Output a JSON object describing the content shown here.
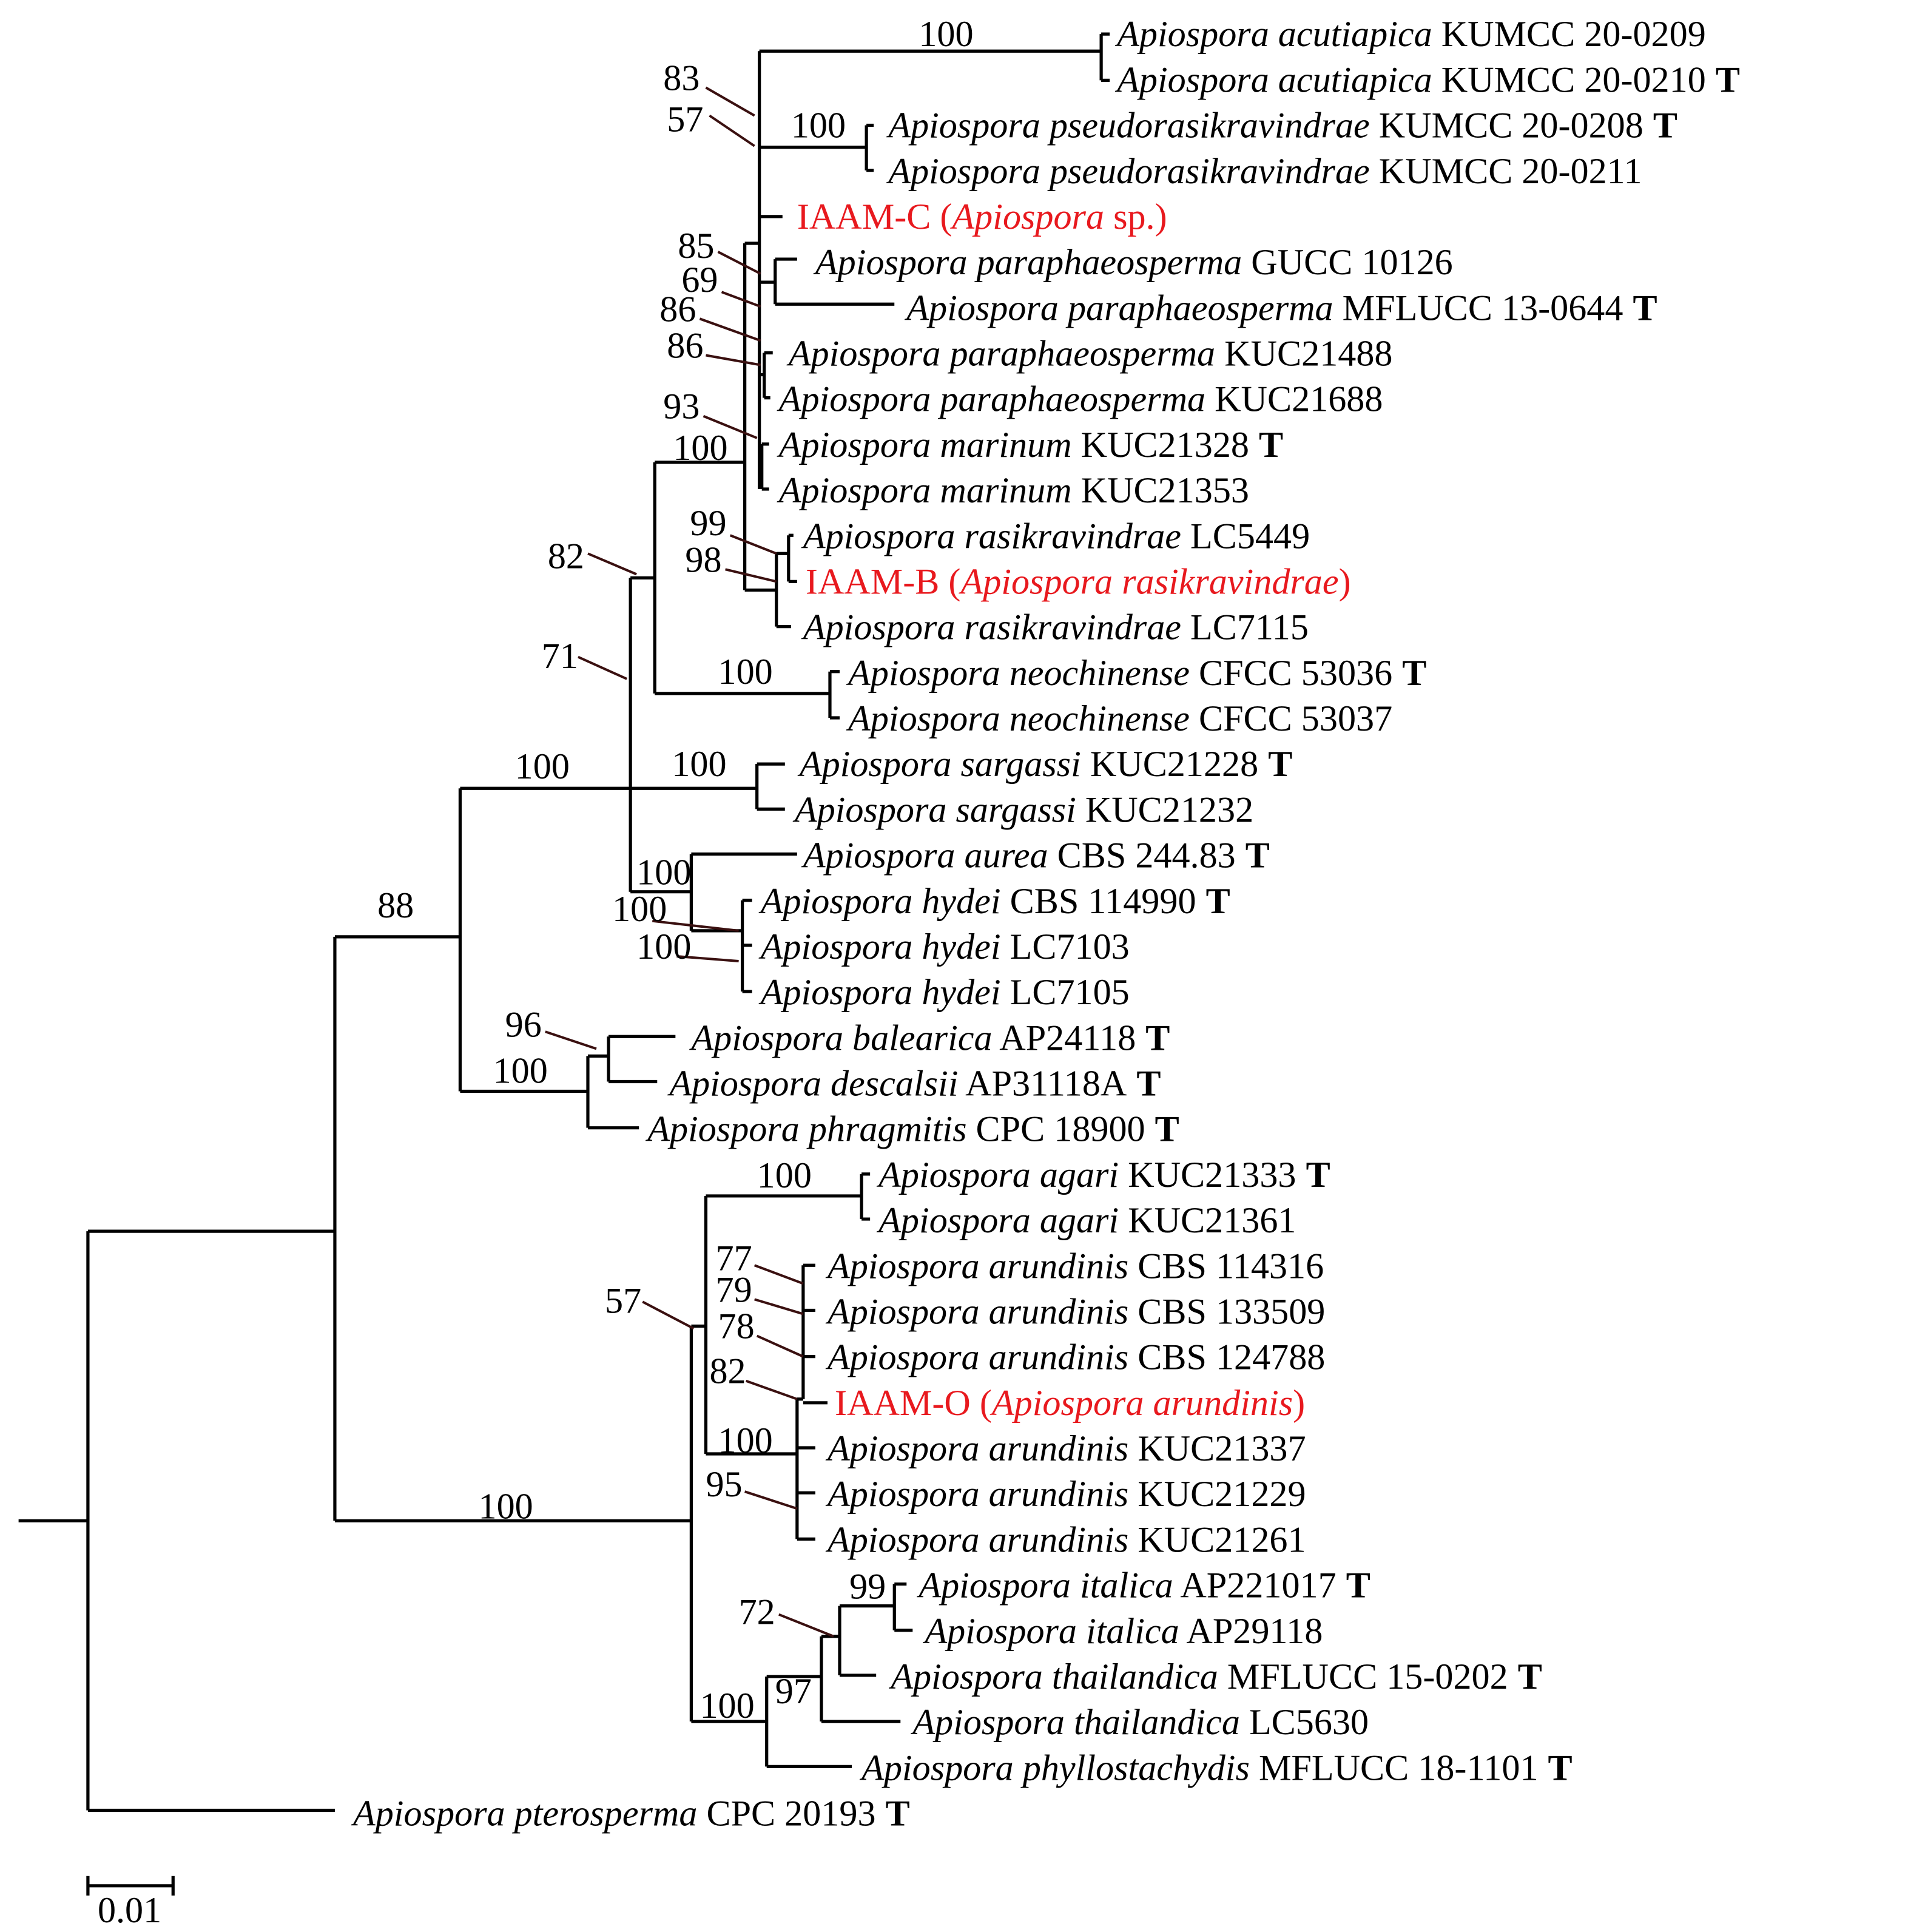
{
  "taxa": [
    {
      "parts": [
        {
          "text": "Apiospora acutiapica",
          "italic": true
        },
        {
          "text": " KUMCC 20-0209"
        }
      ]
    },
    {
      "parts": [
        {
          "text": "Apiospora acutiapica",
          "italic": true
        },
        {
          "text": " KUMCC 20-0210"
        }
      ],
      "type": "T"
    },
    {
      "parts": [
        {
          "text": "Apiospora pseudorasikravindrae",
          "italic": true
        },
        {
          "text": " KUMCC 20-0208"
        }
      ],
      "type": "T"
    },
    {
      "parts": [
        {
          "text": "Apiospora pseudorasikravindrae",
          "italic": true
        },
        {
          "text": " KUMCC 20-0211"
        }
      ]
    },
    {
      "parts": [
        {
          "text": "IAAM-C ("
        },
        {
          "text": "Apiospora",
          "italic": true
        },
        {
          "text": " sp.)"
        }
      ],
      "color": "#e8191e"
    },
    {
      "parts": [
        {
          "text": "Apiospora paraphaeosperma",
          "italic": true
        },
        {
          "text": " GUCC 10126"
        }
      ]
    },
    {
      "parts": [
        {
          "text": "Apiospora paraphaeosperma",
          "italic": true
        },
        {
          "text": " MFLUCC 13-0644"
        }
      ],
      "type": "T"
    },
    {
      "parts": [
        {
          "text": "Apiospora paraphaeosperma",
          "italic": true
        },
        {
          "text": " KUC21488"
        }
      ]
    },
    {
      "parts": [
        {
          "text": "Apiospora paraphaeosperma",
          "italic": true
        },
        {
          "text": " KUC21688"
        }
      ]
    },
    {
      "parts": [
        {
          "text": "Apiospora marinum",
          "italic": true
        },
        {
          "text": " KUC21328"
        }
      ],
      "type": "T"
    },
    {
      "parts": [
        {
          "text": "Apiospora marinum",
          "italic": true
        },
        {
          "text": " KUC21353"
        }
      ]
    },
    {
      "parts": [
        {
          "text": "Apiospora rasikravindrae",
          "italic": true
        },
        {
          "text": " LC5449"
        }
      ]
    },
    {
      "parts": [
        {
          "text": "IAAM-B ("
        },
        {
          "text": "Apiospora rasikravindrae",
          "italic": true
        },
        {
          "text": ")"
        }
      ],
      "color": "#e8191e"
    },
    {
      "parts": [
        {
          "text": "Apiospora rasikravindrae",
          "italic": true
        },
        {
          "text": " LC7115"
        }
      ]
    },
    {
      "parts": [
        {
          "text": "Apiospora neochinense",
          "italic": true
        },
        {
          "text": " CFCC 53036"
        }
      ],
      "type": "T"
    },
    {
      "parts": [
        {
          "text": "Apiospora neochinense",
          "italic": true
        },
        {
          "text": " CFCC 53037"
        }
      ]
    },
    {
      "parts": [
        {
          "text": "Apiospora sargassi",
          "italic": true
        },
        {
          "text": " KUC21228"
        }
      ],
      "type": "T"
    },
    {
      "parts": [
        {
          "text": "Apiospora sargassi",
          "italic": true
        },
        {
          "text": " KUC21232"
        }
      ]
    },
    {
      "parts": [
        {
          "text": "Apiospora aurea",
          "italic": true
        },
        {
          "text": " CBS 244.83"
        }
      ],
      "type": "T"
    },
    {
      "parts": [
        {
          "text": "Apiospora hydei",
          "italic": true
        },
        {
          "text": " CBS 114990"
        }
      ],
      "type": "T"
    },
    {
      "parts": [
        {
          "text": "Apiospora hydei",
          "italic": true
        },
        {
          "text": " LC7103"
        }
      ]
    },
    {
      "parts": [
        {
          "text": "Apiospora hydei",
          "italic": true
        },
        {
          "text": " LC7105"
        }
      ]
    },
    {
      "parts": [
        {
          "text": "Apiospora balearica",
          "italic": true
        },
        {
          "text": " AP24118"
        }
      ],
      "type": "T"
    },
    {
      "parts": [
        {
          "text": "Apiospora descalsii",
          "italic": true
        },
        {
          "text": " AP31118A"
        }
      ],
      "type": "T"
    },
    {
      "parts": [
        {
          "text": "Apiospora phragmitis",
          "italic": true
        },
        {
          "text": " CPC 18900"
        }
      ],
      "type": "T"
    },
    {
      "parts": [
        {
          "text": "Apiospora agari",
          "italic": true
        },
        {
          "text": " KUC21333"
        }
      ],
      "type": "T"
    },
    {
      "parts": [
        {
          "text": "Apiospora agari",
          "italic": true
        },
        {
          "text": " KUC21361"
        }
      ]
    },
    {
      "parts": [
        {
          "text": "Apiospora arundinis",
          "italic": true
        },
        {
          "text": " CBS 114316"
        }
      ]
    },
    {
      "parts": [
        {
          "text": "Apiospora arundinis",
          "italic": true
        },
        {
          "text": " CBS 133509"
        }
      ]
    },
    {
      "parts": [
        {
          "text": "Apiospora arundinis",
          "italic": true
        },
        {
          "text": " CBS 124788"
        }
      ]
    },
    {
      "parts": [
        {
          "text": "IAAM-O ("
        },
        {
          "text": "Apiospora arundinis",
          "italic": true
        },
        {
          "text": ")"
        }
      ],
      "color": "#e8191e"
    },
    {
      "parts": [
        {
          "text": "Apiospora arundinis",
          "italic": true
        },
        {
          "text": " KUC21337"
        }
      ]
    },
    {
      "parts": [
        {
          "text": "Apiospora arundinis",
          "italic": true
        },
        {
          "text": " KUC21229"
        }
      ]
    },
    {
      "parts": [
        {
          "text": "Apiospora arundinis",
          "italic": true
        },
        {
          "text": " KUC21261"
        }
      ]
    },
    {
      "parts": [
        {
          "text": "Apiospora italica",
          "italic": true
        },
        {
          "text": " AP221017"
        }
      ],
      "type": "T"
    },
    {
      "parts": [
        {
          "text": "Apiospora italica",
          "italic": true
        },
        {
          "text": " AP29118"
        }
      ]
    },
    {
      "parts": [
        {
          "text": "Apiospora thailandica",
          "italic": true
        },
        {
          "text": " MFLUCC 15-0202"
        }
      ],
      "type": "T"
    },
    {
      "parts": [
        {
          "text": "Apiospora thailandica",
          "italic": true
        },
        {
          "text": " LC5630"
        }
      ]
    },
    {
      "parts": [
        {
          "text": "Apiospora phyllostachydis",
          "italic": true
        },
        {
          "text": " MFLUCC 18-1101"
        }
      ],
      "type": "T"
    },
    {
      "parts": [
        {
          "text": "Apiospora pterosperma",
          "italic": true
        },
        {
          "text": " CPC 20193"
        }
      ],
      "type": "T"
    }
  ],
  "bootstrap": [
    100,
    83,
    57,
    100,
    85,
    69,
    86,
    86,
    93,
    100,
    99,
    98,
    82,
    71,
    100,
    100,
    100,
    100,
    100,
    100,
    88,
    96,
    100,
    100,
    57,
    77,
    79,
    78,
    82,
    100,
    95,
    100,
    99,
    72,
    97,
    100
  ],
  "scale_bar": {
    "label": "0.01"
  }
}
